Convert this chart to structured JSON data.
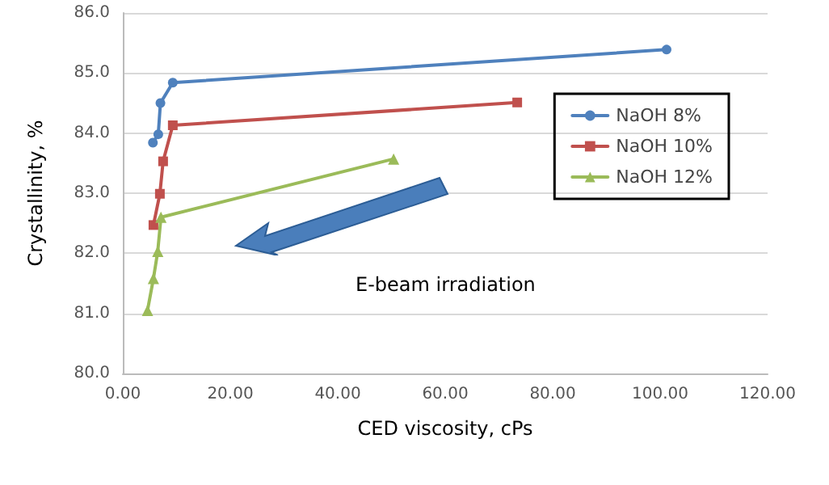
{
  "chart_data": {
    "type": "line",
    "xlabel": "CED viscosity, cPs",
    "ylabel": "Crystallinity, %",
    "xlim": [
      0,
      120
    ],
    "xticks": [
      {
        "value": 0,
        "label": "0.00"
      },
      {
        "value": 20,
        "label": "20.00"
      },
      {
        "value": 40,
        "label": "40.00"
      },
      {
        "value": 60,
        "label": "60.00"
      },
      {
        "value": 80,
        "label": "80.00"
      },
      {
        "value": 100,
        "label": "100.00"
      },
      {
        "value": 120,
        "label": "120.00"
      }
    ],
    "ylim": [
      80,
      86
    ],
    "yticks": [
      {
        "value": 80,
        "label": "80.0"
      },
      {
        "value": 81,
        "label": "81.0"
      },
      {
        "value": 82,
        "label": "82.0"
      },
      {
        "value": 83,
        "label": "83.0"
      },
      {
        "value": 84,
        "label": "84.0"
      },
      {
        "value": 85,
        "label": "85.0"
      },
      {
        "value": 86,
        "label": "86.0"
      }
    ],
    "grid": "y",
    "legend": "right",
    "annotations": [
      "E-beam irradiation"
    ],
    "series": [
      {
        "name": "NaOH 8%",
        "color": "#4f81bd",
        "marker": "circle",
        "x": [
          5.6,
          6.6,
          7.0,
          9.3,
          101.2
        ],
        "values": [
          83.84,
          83.98,
          84.5,
          84.84,
          85.39
        ]
      },
      {
        "name": "NaOH 10%",
        "color": "#c0504d",
        "marker": "square",
        "x": [
          5.7,
          6.9,
          7.5,
          9.3,
          73.4
        ],
        "values": [
          82.47,
          82.99,
          83.53,
          84.13,
          84.51
        ]
      },
      {
        "name": "NaOH 12%",
        "color": "#9bbb59",
        "marker": "triangle",
        "x": [
          4.6,
          5.7,
          6.5,
          7.1,
          50.4
        ],
        "values": [
          81.05,
          81.58,
          82.03,
          82.6,
          83.57
        ]
      }
    ]
  }
}
